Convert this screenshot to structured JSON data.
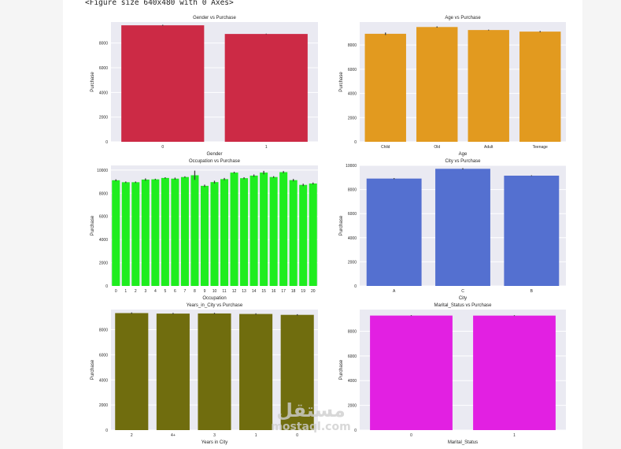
{
  "page": {
    "output_text": "<Figure size 640x480 with 0 Axes>",
    "watermark_arabic": "مستقل",
    "watermark_latin": "mostaql.com"
  },
  "charts": [
    {
      "type": "bar",
      "title": "Gender vs Purchase",
      "xlabel": "Gender",
      "ylabel": "Purchase",
      "categories": [
        "0",
        "1"
      ],
      "values": [
        9437,
        8735
      ],
      "errors": [
        40,
        25
      ],
      "ylim": [
        0,
        9700
      ],
      "yticks": [
        0,
        2000,
        4000,
        6000,
        8000
      ],
      "color": "#cc2a45",
      "grid": true
    },
    {
      "type": "bar",
      "title": "Age vs Purchase",
      "xlabel": "Age",
      "ylabel": "Purchase",
      "categories": [
        "Child",
        "Old",
        "Adult",
        "Teenage"
      ],
      "values": [
        8930,
        9490,
        9240,
        9110
      ],
      "errors": [
        100,
        50,
        30,
        50
      ],
      "ylim": [
        0,
        9900
      ],
      "yticks": [
        0,
        2000,
        4000,
        6000,
        8000
      ],
      "color": "#e29a1f",
      "grid": true
    },
    {
      "type": "bar",
      "title": "Occupation vs Purchase",
      "xlabel": "Occupation",
      "ylabel": "Purchase",
      "categories": [
        "0",
        "1",
        "2",
        "3",
        "4",
        "5",
        "6",
        "7",
        "8",
        "9",
        "10",
        "11",
        "12",
        "13",
        "14",
        "15",
        "16",
        "17",
        "18",
        "19",
        "20"
      ],
      "values": [
        9120,
        8950,
        8950,
        9180,
        9200,
        9320,
        9260,
        9400,
        9550,
        8640,
        8960,
        9220,
        9780,
        9300,
        9520,
        9780,
        9400,
        9820,
        9130,
        8720,
        8840
      ],
      "errors": [
        80,
        60,
        60,
        100,
        50,
        60,
        90,
        60,
        400,
        100,
        120,
        100,
        70,
        80,
        100,
        150,
        70,
        90,
        100,
        100,
        80
      ],
      "ylim": [
        0,
        10400
      ],
      "yticks": [
        0,
        2000,
        4000,
        6000,
        8000,
        10000
      ],
      "color": "#1fed1f",
      "grid": true
    },
    {
      "type": "bar",
      "title": "City vs Purchase",
      "xlabel": "City",
      "ylabel": "Purchase",
      "categories": [
        "A",
        "C",
        "B"
      ],
      "values": [
        8910,
        9720,
        9150
      ],
      "errors": [
        40,
        50,
        30
      ],
      "ylim": [
        0,
        10000
      ],
      "yticks": [
        0,
        2000,
        4000,
        6000,
        8000,
        10000
      ],
      "color": "#5470d0",
      "grid": true
    },
    {
      "type": "bar",
      "title": "Years_in_City vs Purchase",
      "xlabel": "Years in City",
      "ylabel": "Purchase",
      "categories": [
        "2",
        "4+",
        "3",
        "1",
        "0"
      ],
      "values": [
        9320,
        9280,
        9290,
        9250,
        9180
      ],
      "errors": [
        50,
        50,
        50,
        50,
        50
      ],
      "ylim": [
        0,
        9600
      ],
      "yticks": [
        0,
        2000,
        4000,
        6000,
        8000
      ],
      "color": "#706d0e",
      "grid": true
    },
    {
      "type": "bar",
      "title": "Marital_Status vs Purchase",
      "xlabel": "Marital_Status",
      "ylabel": "Purchase",
      "categories": [
        "0",
        "1"
      ],
      "values": [
        9265,
        9262
      ],
      "errors": [
        30,
        30
      ],
      "ylim": [
        0,
        9750
      ],
      "yticks": [
        0,
        2000,
        4000,
        6000,
        8000
      ],
      "color": "#e220e2",
      "grid": true
    }
  ]
}
